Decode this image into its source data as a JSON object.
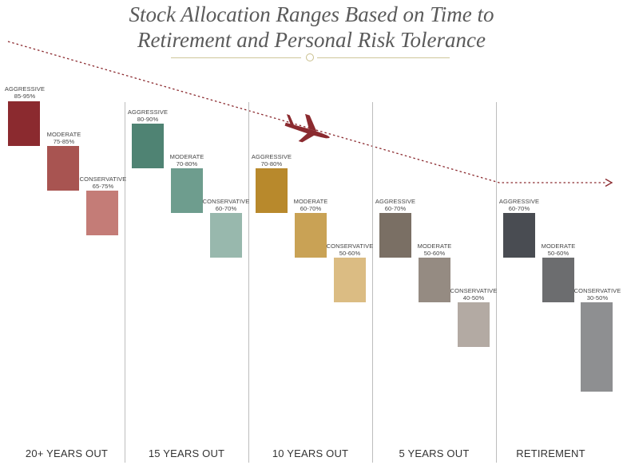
{
  "title": {
    "line1": "Stock Allocation Ranges Based on Time to",
    "line2": "Retirement and Personal Risk Tolerance"
  },
  "columns": [
    {
      "label": "20+ YEARS OUT",
      "rows": [
        {
          "name": "AGGRESSIVE",
          "range": "85-95%",
          "color": "#8b2a2f"
        },
        {
          "name": "MODERATE",
          "range": "75-85%",
          "color": "#a85451"
        },
        {
          "name": "CONSERVATIVE",
          "range": "65-75%",
          "color": "#c47c77"
        }
      ]
    },
    {
      "label": "15 YEARS OUT",
      "rows": [
        {
          "name": "AGGRESSIVE",
          "range": "80-90%",
          "color": "#4f8373"
        },
        {
          "name": "MODERATE",
          "range": "70-80%",
          "color": "#6e9d8e"
        },
        {
          "name": "CONSERVATIVE",
          "range": "60-70%",
          "color": "#98b8ad"
        }
      ]
    },
    {
      "label": "10 YEARS OUT",
      "rows": [
        {
          "name": "AGGRESSIVE",
          "range": "70-80%",
          "color": "#b8892c"
        },
        {
          "name": "MODERATE",
          "range": "60-70%",
          "color": "#c9a255"
        },
        {
          "name": "CONSERVATIVE",
          "range": "50-60%",
          "color": "#dbbc83"
        }
      ]
    },
    {
      "label": "5 YEARS OUT",
      "rows": [
        {
          "name": "AGGRESSIVE",
          "range": "60-70%",
          "color": "#7a6f64"
        },
        {
          "name": "MODERATE",
          "range": "50-60%",
          "color": "#958b82"
        },
        {
          "name": "CONSERVATIVE",
          "range": "40-50%",
          "color": "#b3aaa3"
        }
      ]
    },
    {
      "label": "RETIREMENT",
      "rows": [
        {
          "name": "AGGRESSIVE",
          "range": "60-70%",
          "color": "#494c52"
        },
        {
          "name": "MODERATE",
          "range": "50-60%",
          "color": "#6c6d6f"
        },
        {
          "name": "CONSERVATIVE",
          "range": "30-50%",
          "color": "#8e8f91"
        }
      ]
    }
  ],
  "colors": {
    "path": "#8b2a2f",
    "ornament": "#c9bf8c",
    "divider": "#bdbdbd"
  },
  "icons": {
    "plane": "airplane-icon"
  }
}
